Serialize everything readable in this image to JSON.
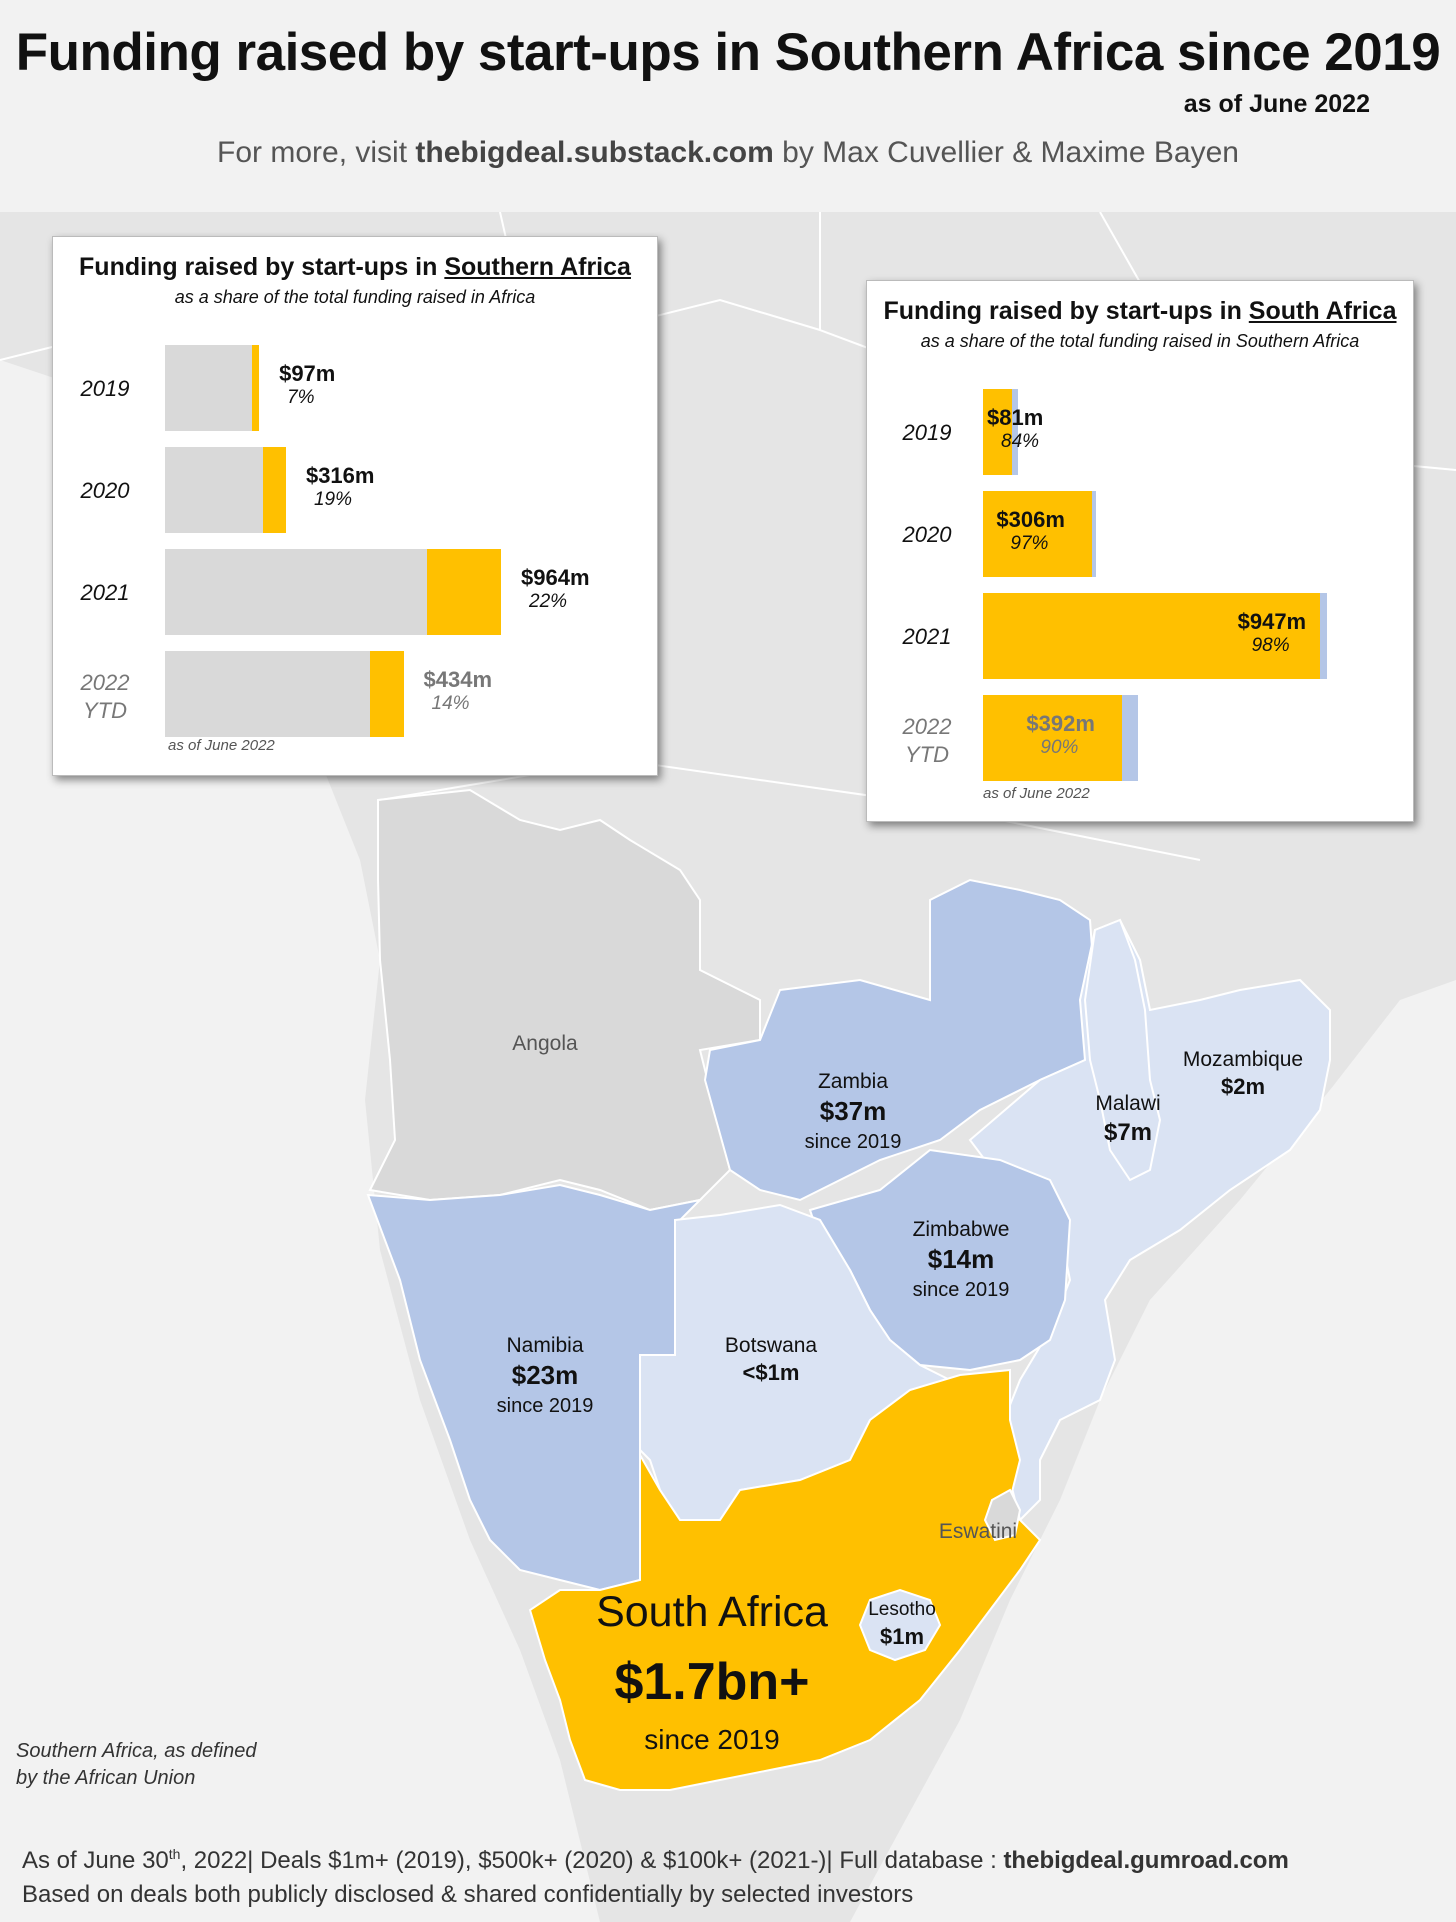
{
  "header": {
    "title": "Funding raised by start-ups in Southern Africa since 2019",
    "as_of": "as of June 2022",
    "subtitle_prefix": "For more, visit ",
    "subtitle_site": "thebigdeal.substack.com",
    "subtitle_suffix": " by Max Cuvellier & Maxime Bayen"
  },
  "colors": {
    "background": "#f2f2f2",
    "land_grey": "#e5e5e5",
    "angola": "#d9d9d9",
    "dark_blue": "#b4c6e7",
    "light_blue": "#dae3f3",
    "south_africa": "#ffc000"
  },
  "countries": {
    "angola": {
      "name": "Angola"
    },
    "zambia": {
      "name": "Zambia",
      "amount": "$37m",
      "since": "since 2019"
    },
    "mozambique": {
      "name": "Mozambique",
      "amount": "$2m"
    },
    "malawi": {
      "name": "Malawi",
      "amount": "$7m"
    },
    "zimbabwe": {
      "name": "Zimbabwe",
      "amount": "$14m",
      "since": "since 2019"
    },
    "namibia": {
      "name": "Namibia",
      "amount": "$23m",
      "since": "since 2019"
    },
    "botswana": {
      "name": "Botswana",
      "amount": "<$1m"
    },
    "eswatini": {
      "name": "Eswatini"
    },
    "lesotho": {
      "name": "Lesotho",
      "amount": "$1m"
    },
    "south_africa": {
      "name": "South Africa",
      "amount": "$1.7bn+",
      "since": "since 2019"
    }
  },
  "side_note": {
    "line1": "Southern Africa, as defined",
    "line2": "by the African Union"
  },
  "footer": {
    "line1_a": "As of June 30",
    "line1_sup": "th",
    "line1_b": ", 2022| Deals $1m+ (2019), $500k+ (2020) & $100k+ (2021-)| Full database : ",
    "line1_site": "thebigdeal.gumroad.com",
    "line2": "Based on deals both publicly disclosed & shared confidentially by selected investors"
  },
  "panel_left": {
    "title_prefix": "Funding raised by start-ups in ",
    "title_underlined": "Southern Africa",
    "subtitle": "as a share of the total funding raised in Africa",
    "note": "as of June 2022",
    "chart_data": {
      "type": "bar",
      "orientation": "horizontal",
      "categories": [
        "2019",
        "2020",
        "2021",
        "2022 YTD"
      ],
      "series": [
        {
          "name": "Southern Africa",
          "values": [
            97,
            316,
            964,
            434
          ],
          "labels": [
            "$97m",
            "$316m",
            "$964m",
            "$434m"
          ],
          "shares": [
            "7%",
            "19%",
            "22%",
            "14%"
          ]
        }
      ],
      "total_scale": [
        0.28,
        0.36,
        1.0,
        0.71
      ],
      "share_values": [
        0.07,
        0.19,
        0.22,
        0.14
      ]
    }
  },
  "panel_right": {
    "title_prefix": "Funding raised by start-ups in ",
    "title_underlined": "South Africa",
    "subtitle": "as a share of the total funding raised in Southern Africa",
    "note": "as of June 2022",
    "chart_data": {
      "type": "bar",
      "orientation": "horizontal",
      "categories": [
        "2019",
        "2020",
        "2021",
        "2022 YTD"
      ],
      "series": [
        {
          "name": "South Africa",
          "values": [
            81,
            306,
            947,
            392
          ],
          "labels": [
            "$81m",
            "$306m",
            "$947m",
            "$392m"
          ],
          "shares": [
            "84%",
            "97%",
            "98%",
            "90%"
          ]
        }
      ],
      "totals": [
        97,
        316,
        964,
        434
      ],
      "share_values": [
        0.84,
        0.97,
        0.98,
        0.9
      ]
    }
  }
}
